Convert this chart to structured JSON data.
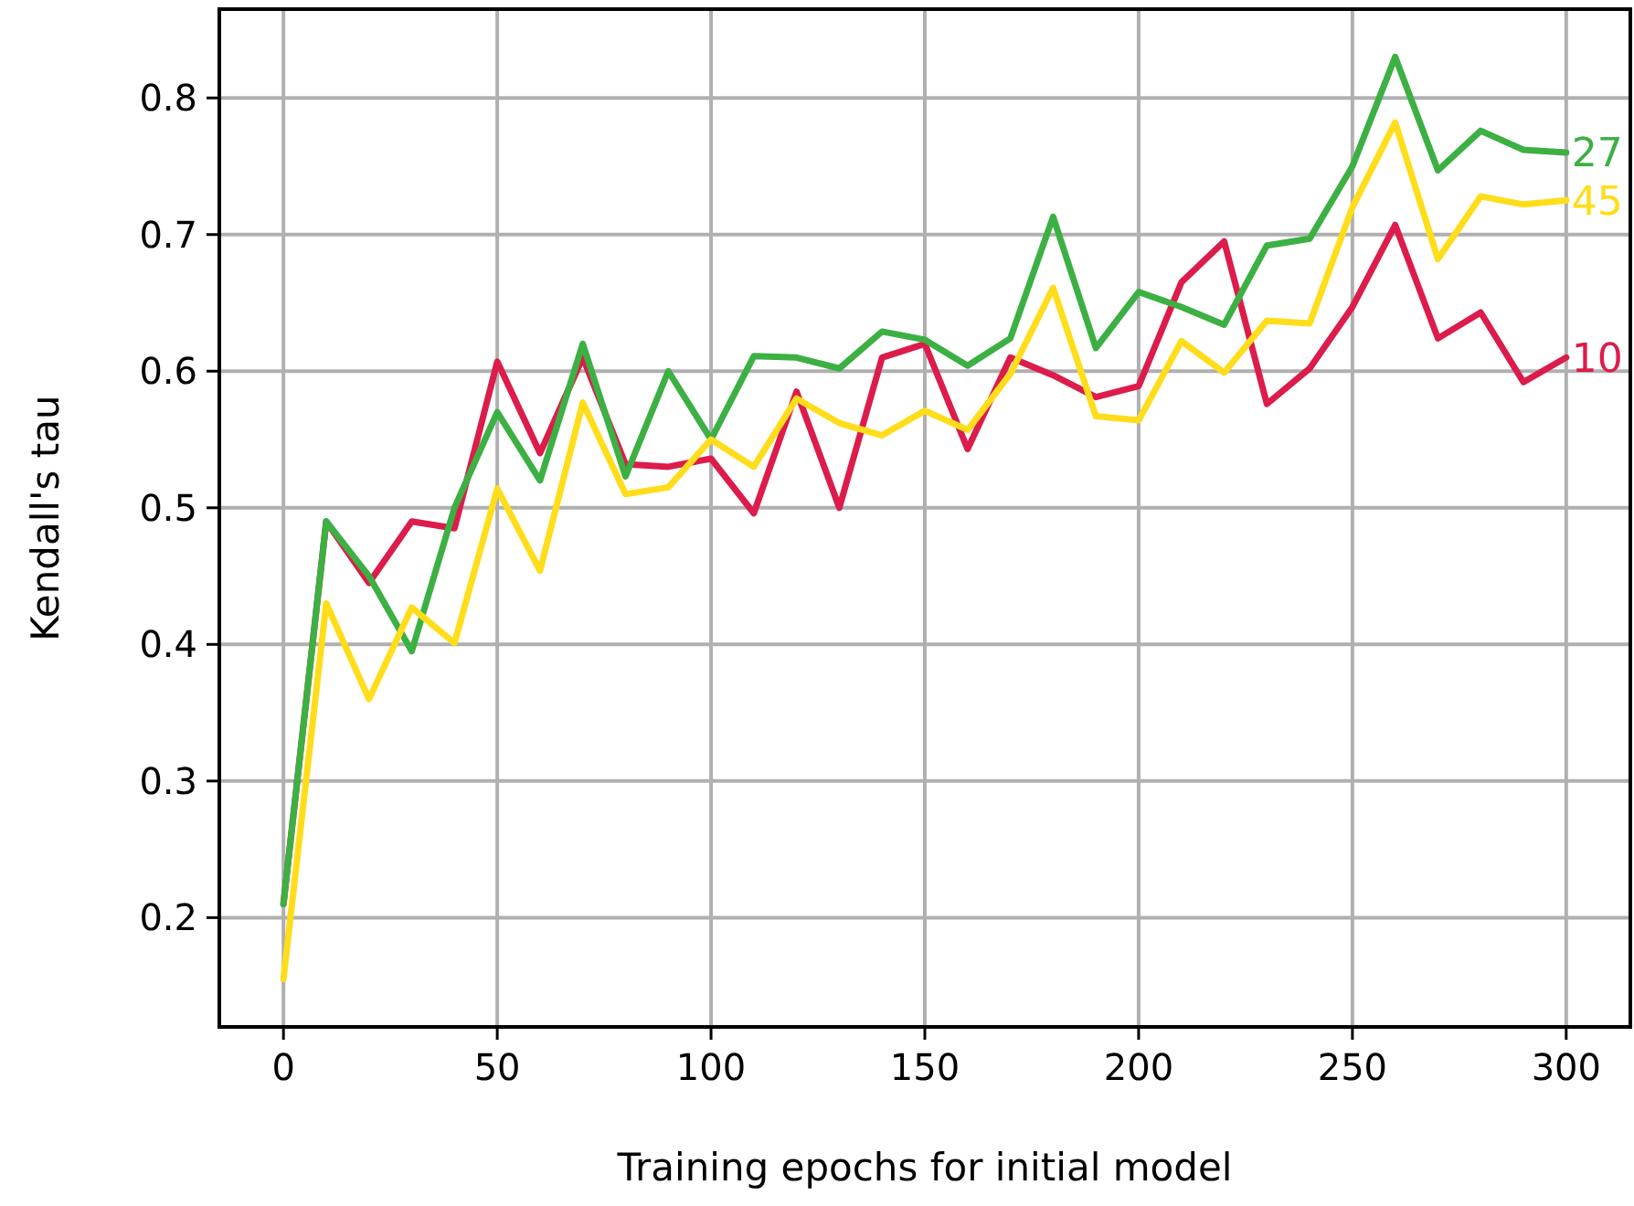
{
  "chart_data": {
    "type": "line",
    "xlabel": "Training epochs for initial model",
    "ylabel": "Kendall's tau",
    "x": [
      0,
      10,
      20,
      30,
      40,
      50,
      60,
      70,
      80,
      90,
      100,
      110,
      120,
      130,
      140,
      150,
      160,
      170,
      180,
      190,
      200,
      210,
      220,
      230,
      240,
      250,
      260,
      270,
      280,
      290,
      300
    ],
    "series": [
      {
        "name": "10",
        "color": "#dc1c4b",
        "values": [
          0.21,
          0.49,
          0.445,
          0.49,
          0.485,
          0.607,
          0.54,
          0.61,
          0.532,
          0.53,
          0.536,
          0.496,
          0.585,
          0.5,
          0.61,
          0.62,
          0.543,
          0.61,
          0.597,
          0.581,
          0.589,
          0.665,
          0.695,
          0.576,
          0.602,
          0.647,
          0.707,
          0.624,
          0.643,
          0.592,
          0.61
        ]
      },
      {
        "name": "27",
        "color": "#3cb043",
        "values": [
          0.21,
          0.49,
          0.45,
          0.395,
          0.5,
          0.57,
          0.52,
          0.62,
          0.523,
          0.6,
          0.55,
          0.611,
          0.61,
          0.602,
          0.629,
          0.623,
          0.604,
          0.624,
          0.713,
          0.617,
          0.658,
          0.647,
          0.634,
          0.692,
          0.697,
          0.75,
          0.83,
          0.747,
          0.776,
          0.762,
          0.76
        ]
      },
      {
        "name": "45",
        "color": "#ffdd1a",
        "values": [
          0.155,
          0.43,
          0.36,
          0.427,
          0.401,
          0.514,
          0.454,
          0.577,
          0.51,
          0.515,
          0.55,
          0.53,
          0.58,
          0.562,
          0.553,
          0.571,
          0.557,
          0.598,
          0.661,
          0.567,
          0.564,
          0.622,
          0.599,
          0.637,
          0.635,
          0.72,
          0.782,
          0.682,
          0.728,
          0.722,
          0.725
        ]
      }
    ],
    "xlim": [
      -15,
      315
    ],
    "xticks": [
      0,
      50,
      100,
      150,
      200,
      250,
      300
    ],
    "ylim": [
      0.12,
      0.865
    ],
    "yticks": [
      0.2,
      0.3,
      0.4,
      0.5,
      0.6,
      0.7,
      0.8
    ],
    "grid": true,
    "legend": false,
    "marker": "none",
    "line_style": "solid"
  }
}
